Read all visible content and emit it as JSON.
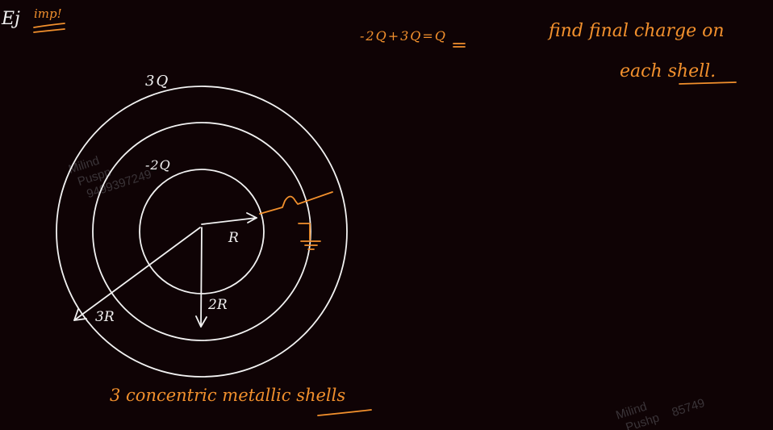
{
  "header": {
    "example_mark": "Ej",
    "imp_note": "imp!"
  },
  "equation": "-2Q+3Q=Q",
  "question": {
    "line1": "find final charge on",
    "line2": "each shell."
  },
  "diagram": {
    "outer_charge": "3Q",
    "middle_charge": "-2Q",
    "label_inner_radius": "R",
    "label_middle_radius": "2R",
    "label_outer_radius": "3R"
  },
  "caption": "3 concentric metallic shells",
  "watermarks": [
    {
      "line1": "Milind",
      "line2": "Puspp",
      "line3": "9499397249"
    },
    {
      "line1": "Milind",
      "line2": "Pushp",
      "line3": "85749"
    }
  ],
  "colors": {
    "background": "#0f0305",
    "ink_orange": "#f2902d",
    "ink_white": "#f2f2f2"
  }
}
